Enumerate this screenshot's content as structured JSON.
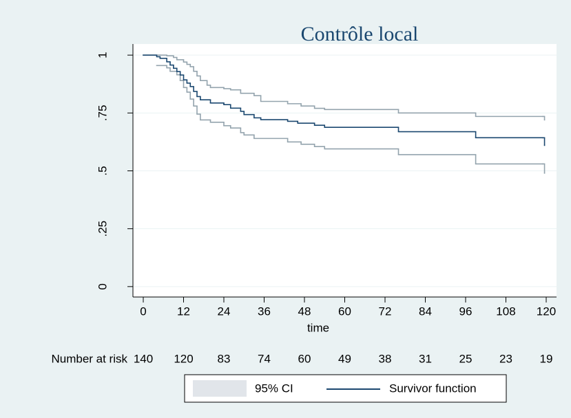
{
  "chart_data": {
    "type": "km",
    "title": "Contrôle local",
    "x_label": "time",
    "xlim": [
      -3.08,
      123.08
    ],
    "xticks": [
      0,
      12,
      24,
      36,
      48,
      60,
      72,
      84,
      96,
      108,
      120
    ],
    "ylim": [
      -0.045,
      1.048
    ],
    "yticks": [
      0,
      {
        "value": 0.25,
        "label": ".25"
      },
      {
        "value": 0.5,
        "label": ".5"
      },
      {
        "value": 0.75,
        "label": ".75"
      },
      1
    ],
    "grid": true,
    "legend": "bottom",
    "series": [
      {
        "name": "Survivor function",
        "color": "#1a476f",
        "x": [
          0,
          4,
          5,
          7,
          8,
          9,
          10,
          11,
          12,
          13,
          14,
          15,
          16,
          17,
          20,
          24,
          26,
          29,
          30,
          33,
          35,
          43,
          46,
          51,
          54,
          76,
          99,
          119,
          119.5
        ],
        "values": [
          1,
          0.993,
          0.986,
          0.971,
          0.957,
          0.943,
          0.929,
          0.914,
          0.893,
          0.879,
          0.864,
          0.843,
          0.821,
          0.807,
          0.793,
          0.786,
          0.771,
          0.757,
          0.743,
          0.729,
          0.721,
          0.714,
          0.706,
          0.697,
          0.688,
          0.669,
          0.643,
          0.643,
          0.61
        ]
      }
    ],
    "ci": {
      "name": "95% CI",
      "color": "#93a3ad",
      "legend_color": "#e1e5ea",
      "upper": {
        "x": [
          0,
          5,
          7,
          9,
          10,
          12,
          13,
          14,
          15,
          16,
          17,
          19,
          20,
          24,
          26,
          29,
          33,
          35,
          43,
          47,
          51,
          54,
          76,
          99,
          119,
          119.5
        ],
        "values": [
          1,
          1,
          0.997,
          0.99,
          0.98,
          0.97,
          0.96,
          0.95,
          0.93,
          0.91,
          0.89,
          0.87,
          0.86,
          0.855,
          0.85,
          0.835,
          0.825,
          0.8,
          0.79,
          0.78,
          0.77,
          0.765,
          0.75,
          0.735,
          0.735,
          0.72
        ]
      },
      "lower": {
        "x": [
          4,
          7,
          8,
          10,
          11,
          12,
          13,
          14,
          15,
          16,
          17,
          20,
          24,
          26,
          29,
          30,
          33,
          43,
          47,
          51,
          54,
          76,
          99,
          119,
          119.5
        ],
        "values": [
          0.955,
          0.945,
          0.93,
          0.915,
          0.89,
          0.86,
          0.84,
          0.81,
          0.78,
          0.745,
          0.72,
          0.71,
          0.695,
          0.685,
          0.665,
          0.655,
          0.64,
          0.625,
          0.615,
          0.605,
          0.595,
          0.57,
          0.53,
          0.53,
          0.49
        ]
      }
    },
    "at_risk": {
      "label": "Number at risk",
      "times": [
        0,
        12,
        24,
        36,
        48,
        60,
        72,
        84,
        96,
        108,
        120
      ],
      "values": [
        140,
        120,
        83,
        74,
        60,
        49,
        38,
        31,
        25,
        23,
        19
      ]
    }
  }
}
